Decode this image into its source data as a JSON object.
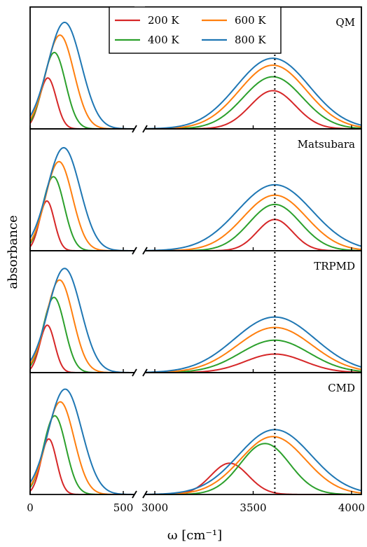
{
  "chart_data": {
    "type": "line",
    "xlabel": "ω [cm⁻¹]",
    "ylabel": "absorbance",
    "xlim_left": [
      0,
      560
    ],
    "xlim_right": [
      2950,
      4050
    ],
    "xticks_left": [
      0,
      500
    ],
    "xticks_right": [
      3000,
      3500,
      4000
    ],
    "xtick_labels_left": [
      "0",
      "500"
    ],
    "xtick_labels_right": [
      "3000",
      "3500",
      "4000"
    ],
    "axis_break": true,
    "reference_line_x": 3610,
    "legend": {
      "placement": "top-center",
      "entries": [
        {
          "label": "200 K",
          "color": "#d62728"
        },
        {
          "label": "400 K",
          "color": "#2ca02c"
        },
        {
          "label": "600 K",
          "color": "#ff7f0e"
        },
        {
          "label": "800 K",
          "color": "#1f77b4"
        }
      ]
    },
    "panels": [
      {
        "label": "QM",
        "series": [
          {
            "name": "200 K",
            "color": "#d62728",
            "low": {
              "center": 95,
              "height": 0.44,
              "width": 45
            },
            "high": {
              "center": 3600,
              "height": 0.33,
              "width": 115
            }
          },
          {
            "name": "400 K",
            "color": "#2ca02c",
            "low": {
              "center": 130,
              "height": 0.66,
              "width": 60
            },
            "high": {
              "center": 3600,
              "height": 0.45,
              "width": 150
            }
          },
          {
            "name": "600 K",
            "color": "#ff7f0e",
            "low": {
              "center": 160,
              "height": 0.81,
              "width": 75
            },
            "high": {
              "center": 3600,
              "height": 0.55,
              "width": 170
            }
          },
          {
            "name": "800 K",
            "color": "#1f77b4",
            "low": {
              "center": 185,
              "height": 0.92,
              "width": 90
            },
            "high": {
              "center": 3600,
              "height": 0.61,
              "width": 185
            }
          }
        ]
      },
      {
        "label": "Matsubara",
        "series": [
          {
            "name": "200 K",
            "color": "#d62728",
            "low": {
              "center": 90,
              "height": 0.43,
              "width": 40
            },
            "high": {
              "center": 3610,
              "height": 0.27,
              "width": 90
            }
          },
          {
            "name": "400 K",
            "color": "#2ca02c",
            "low": {
              "center": 125,
              "height": 0.64,
              "width": 58
            },
            "high": {
              "center": 3610,
              "height": 0.4,
              "width": 130
            }
          },
          {
            "name": "600 K",
            "color": "#ff7f0e",
            "low": {
              "center": 155,
              "height": 0.77,
              "width": 72
            },
            "high": {
              "center": 3610,
              "height": 0.48,
              "width": 160
            }
          },
          {
            "name": "800 K",
            "color": "#1f77b4",
            "low": {
              "center": 180,
              "height": 0.89,
              "width": 88
            },
            "high": {
              "center": 3610,
              "height": 0.57,
              "width": 190
            }
          }
        ]
      },
      {
        "label": "TRPMD",
        "series": [
          {
            "name": "200 K",
            "color": "#d62728",
            "low": {
              "center": 92,
              "height": 0.41,
              "width": 40
            },
            "high": {
              "center": 3610,
              "height": 0.16,
              "width": 150
            }
          },
          {
            "name": "400 K",
            "color": "#2ca02c",
            "low": {
              "center": 128,
              "height": 0.65,
              "width": 58
            },
            "high": {
              "center": 3610,
              "height": 0.28,
              "width": 175
            }
          },
          {
            "name": "600 K",
            "color": "#ff7f0e",
            "low": {
              "center": 158,
              "height": 0.8,
              "width": 72
            },
            "high": {
              "center": 3610,
              "height": 0.39,
              "width": 190
            }
          },
          {
            "name": "800 K",
            "color": "#1f77b4",
            "low": {
              "center": 185,
              "height": 0.9,
              "width": 88
            },
            "high": {
              "center": 3610,
              "height": 0.48,
              "width": 205
            }
          }
        ]
      },
      {
        "label": "CMD",
        "series": [
          {
            "name": "200 K",
            "color": "#d62728",
            "low": {
              "center": 100,
              "height": 0.48,
              "width": 42
            },
            "high": {
              "center": 3380,
              "height": 0.27,
              "width": 95
            }
          },
          {
            "name": "400 K",
            "color": "#2ca02c",
            "low": {
              "center": 132,
              "height": 0.68,
              "width": 60
            },
            "high": {
              "center": 3560,
              "height": 0.44,
              "width": 125
            }
          },
          {
            "name": "600 K",
            "color": "#ff7f0e",
            "low": {
              "center": 162,
              "height": 0.8,
              "width": 74
            },
            "high": {
              "center": 3600,
              "height": 0.5,
              "width": 165
            }
          },
          {
            "name": "800 K",
            "color": "#1f77b4",
            "low": {
              "center": 188,
              "height": 0.91,
              "width": 90
            },
            "high": {
              "center": 3610,
              "height": 0.56,
              "width": 185
            }
          }
        ]
      }
    ]
  }
}
